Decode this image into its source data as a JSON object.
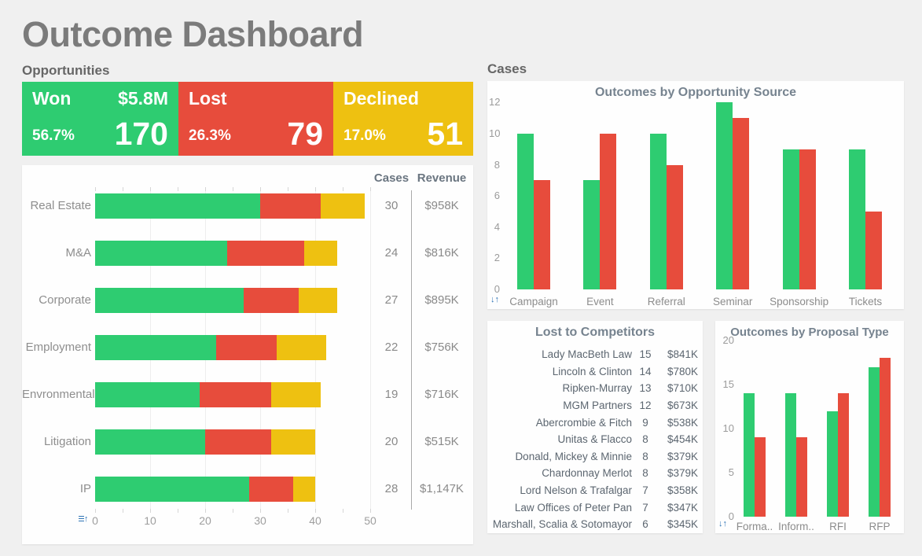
{
  "title": "Outcome Dashboard",
  "sections": {
    "opportunities": "Opportunities",
    "cases": "Cases"
  },
  "colors": {
    "won": "#2ecc71",
    "lost": "#e74c3c",
    "declined": "#eec111",
    "sort_icon_blue": "#2e74b5"
  },
  "kpis": [
    {
      "label": "Won",
      "amount": "$5.8M",
      "percent": "56.7%",
      "count": "170",
      "color": "#2ecc71"
    },
    {
      "label": "Lost",
      "amount": "",
      "percent": "26.3%",
      "count": "79",
      "color": "#e74c3c"
    },
    {
      "label": "Declined",
      "amount": "",
      "percent": "17.0%",
      "count": "51",
      "color": "#eec111"
    }
  ],
  "icons": {
    "sort_ascending": "lines-with-up-arrow",
    "sort_toggle": "down-up-arrows"
  },
  "chart_data": [
    {
      "id": "outcomes-by-practice-area",
      "type": "bar",
      "orientation": "horizontal",
      "stacked": true,
      "legend": "none",
      "categories": [
        "Real Estate",
        "M&A",
        "Corporate",
        "Employment",
        "Envronmental",
        "Litigation",
        "IP"
      ],
      "series": [
        {
          "name": "Won",
          "color": "#2ecc71",
          "values": [
            30,
            24,
            27,
            22,
            19,
            20,
            28
          ]
        },
        {
          "name": "Lost",
          "color": "#e74c3c",
          "values": [
            11,
            14,
            10,
            11,
            13,
            12,
            8
          ]
        },
        {
          "name": "Declined",
          "color": "#eec111",
          "values": [
            8,
            6,
            7,
            9,
            9,
            8,
            4
          ]
        }
      ],
      "columns": {
        "cases": {
          "header": "Cases",
          "values": [
            "30",
            "24",
            "27",
            "22",
            "19",
            "20",
            "28"
          ]
        },
        "revenue": {
          "header": "Revenue",
          "values": [
            "$958K",
            "$816K",
            "$895K",
            "$756K",
            "$716K",
            "$515K",
            "$1,147K"
          ]
        }
      },
      "x_ticks": [
        "0",
        "10",
        "20",
        "30",
        "40",
        "50"
      ],
      "xlim": [
        0,
        50
      ],
      "minor_tick_step": 5
    },
    {
      "id": "outcomes-by-opportunity-source",
      "type": "bar",
      "orientation": "vertical",
      "stacked": false,
      "title": "Outcomes by Opportunity Source",
      "categories": [
        "Campaign",
        "Event",
        "Referral",
        "Seminar",
        "Sponsorship",
        "Tickets"
      ],
      "series": [
        {
          "name": "Won",
          "color": "#2ecc71",
          "values": [
            10,
            7,
            10,
            12,
            9,
            9
          ]
        },
        {
          "name": "Lost",
          "color": "#e74c3c",
          "values": [
            7,
            10,
            8,
            11,
            9,
            5
          ]
        }
      ],
      "y_ticks": [
        0,
        2,
        4,
        6,
        8,
        10,
        12
      ],
      "ylim": [
        0,
        12.6
      ],
      "grid": "off",
      "legend": "none"
    },
    {
      "id": "lost-to-competitors",
      "type": "table",
      "title": "Lost to Competitors",
      "rows": [
        {
          "name": "Lady MacBeth Law",
          "count": "15",
          "revenue": "$841K"
        },
        {
          "name": "Lincoln & Clinton",
          "count": "14",
          "revenue": "$780K"
        },
        {
          "name": "Ripken-Murray",
          "count": "13",
          "revenue": "$710K"
        },
        {
          "name": "MGM Partners",
          "count": "12",
          "revenue": "$673K"
        },
        {
          "name": "Abercrombie & Fitch",
          "count": "9",
          "revenue": "$538K"
        },
        {
          "name": "Unitas & Flacco",
          "count": "8",
          "revenue": "$454K"
        },
        {
          "name": "Donald, Mickey & Minnie",
          "count": "8",
          "revenue": "$379K"
        },
        {
          "name": "Chardonnay Merlot",
          "count": "8",
          "revenue": "$379K"
        },
        {
          "name": "Lord Nelson & Trafalgar",
          "count": "7",
          "revenue": "$358K"
        },
        {
          "name": "Law Offices of Peter Pan",
          "count": "7",
          "revenue": "$347K"
        },
        {
          "name": "Marshall, Scalia & Sotomayor",
          "count": "6",
          "revenue": "$345K"
        }
      ]
    },
    {
      "id": "outcomes-by-proposal-type",
      "type": "bar",
      "orientation": "vertical",
      "stacked": false,
      "title": "Outcomes by Proposal Type",
      "categories": [
        "Forma..",
        "Inform..",
        "RFI",
        "RFP"
      ],
      "series": [
        {
          "name": "Won",
          "color": "#2ecc71",
          "values": [
            14,
            14,
            12,
            17
          ]
        },
        {
          "name": "Lost",
          "color": "#e74c3c",
          "values": [
            9,
            9,
            14,
            18
          ]
        }
      ],
      "y_ticks": [
        0,
        5,
        10,
        15,
        20
      ],
      "ylim": [
        0,
        20
      ],
      "grid": "off",
      "legend": "none"
    }
  ]
}
